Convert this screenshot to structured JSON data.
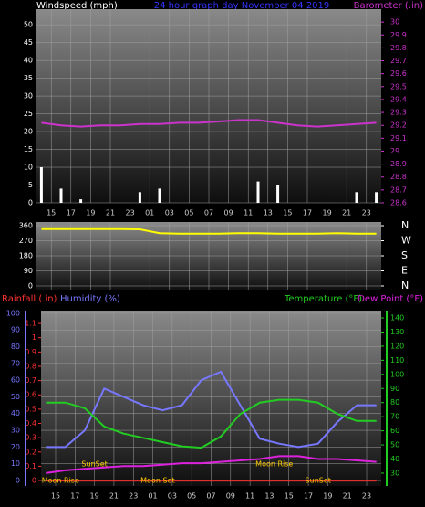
{
  "chart_data": [
    {
      "type": "bar",
      "title": "24 hour graph day   November 04 2019",
      "x": [
        14,
        16,
        18,
        20,
        22,
        24,
        26,
        28,
        30,
        32,
        34,
        36,
        38,
        40,
        42,
        44,
        46,
        48
      ],
      "xlim": [
        13.5,
        48.5
      ],
      "xticks": [
        {
          "value": 15,
          "label": "15"
        },
        {
          "value": 17,
          "label": "17"
        },
        {
          "value": 19,
          "label": "19"
        },
        {
          "value": 21,
          "label": "21"
        },
        {
          "value": 23,
          "label": "23"
        },
        {
          "value": 25,
          "label": "01"
        },
        {
          "value": 27,
          "label": "03"
        },
        {
          "value": 29,
          "label": "05"
        },
        {
          "value": 31,
          "label": "07"
        },
        {
          "value": 33,
          "label": "09"
        },
        {
          "value": 35,
          "label": "11"
        },
        {
          "value": 37,
          "label": "13"
        },
        {
          "value": 39,
          "label": "15"
        },
        {
          "value": 41,
          "label": "17"
        },
        {
          "value": 43,
          "label": "19"
        },
        {
          "value": 45,
          "label": "21"
        },
        {
          "value": 47,
          "label": "23"
        }
      ],
      "ylim": [
        0,
        54.4
      ],
      "yticks": [
        0,
        5,
        10,
        15,
        20,
        25,
        30,
        35,
        40,
        45,
        50
      ],
      "y2lim": [
        28.6,
        30.1
      ],
      "y2ticks": [
        28.6,
        28.7,
        28.8,
        28.9,
        29,
        29.1,
        29.2,
        29.3,
        29.4,
        29.5,
        29.6,
        29.7,
        29.8,
        29.9,
        30
      ],
      "grid": true,
      "series": [
        {
          "name": "Windspeed (mph)",
          "color": "#ffffff",
          "values": [
            10,
            4,
            1,
            0,
            0,
            3,
            4,
            0,
            0,
            0,
            0,
            6,
            5,
            0,
            0,
            0,
            3,
            3
          ]
        },
        {
          "name": "Barometer (.in)",
          "color": "#cc33cc",
          "axis": "y2",
          "values": [
            29.22,
            29.2,
            29.19,
            29.2,
            29.2,
            29.21,
            29.21,
            29.22,
            29.22,
            29.23,
            29.24,
            29.24,
            29.22,
            29.2,
            29.19,
            29.2,
            29.21,
            29.22
          ]
        }
      ]
    },
    {
      "type": "line",
      "x": [
        14,
        16,
        18,
        20,
        22,
        24,
        26,
        28,
        30,
        32,
        34,
        36,
        38,
        40,
        42,
        44,
        46,
        48
      ],
      "xlim": [
        13.5,
        48.5
      ],
      "ylim": [
        -27.3,
        381.8
      ],
      "yticks": [
        0,
        90,
        180,
        270,
        360
      ],
      "y2lim": [
        -27.3,
        381.8
      ],
      "y2ticks": [
        {
          "value": 360,
          "label": "N"
        },
        {
          "value": 270,
          "label": "W"
        },
        {
          "value": 180,
          "label": "S"
        },
        {
          "value": 90,
          "label": "E"
        },
        {
          "value": 0,
          "label": "N"
        }
      ],
      "grid": true,
      "series": [
        {
          "color": "#ffff00",
          "values": [
            340,
            340,
            340,
            340,
            340,
            338,
            315,
            312,
            312,
            312,
            315,
            315,
            312,
            312,
            312,
            315,
            312,
            312
          ]
        }
      ]
    },
    {
      "type": "line",
      "x": [
        14,
        16,
        18,
        20,
        22,
        24,
        26,
        28,
        30,
        32,
        34,
        36,
        38,
        40,
        42,
        44,
        46,
        48
      ],
      "xlim": [
        13.5,
        48.5
      ],
      "xticks": [
        {
          "value": 15,
          "label": "15"
        },
        {
          "value": 17,
          "label": "17"
        },
        {
          "value": 19,
          "label": "19"
        },
        {
          "value": 21,
          "label": "21"
        },
        {
          "value": 23,
          "label": "23"
        },
        {
          "value": 25,
          "label": "01"
        },
        {
          "value": 27,
          "label": "03"
        },
        {
          "value": 29,
          "label": "05"
        },
        {
          "value": 31,
          "label": "07"
        },
        {
          "value": 33,
          "label": "09"
        },
        {
          "value": 35,
          "label": "11"
        },
        {
          "value": 37,
          "label": "13"
        },
        {
          "value": 39,
          "label": "15"
        },
        {
          "value": 41,
          "label": "17"
        },
        {
          "value": 43,
          "label": "19"
        },
        {
          "value": 45,
          "label": "21"
        },
        {
          "value": 47,
          "label": "23"
        }
      ],
      "ylim": [
        -3.3,
        101.6
      ],
      "yticks": [
        0,
        10,
        20,
        30,
        40,
        50,
        60,
        70,
        80,
        90,
        100
      ],
      "y2lim": [
        20.9,
        145.2
      ],
      "y2ticks": [
        30,
        40,
        50,
        60,
        70,
        80,
        90,
        100,
        110,
        120,
        130,
        140
      ],
      "y3lim": [
        -0.038,
        1.19
      ],
      "y3ticks": [
        0,
        0.1,
        0.2,
        0.3,
        0.4,
        0.5,
        0.6,
        0.7,
        0.8,
        0.9,
        1,
        1.1
      ],
      "grid": true,
      "series": [
        {
          "name": "Rainfall (.in)",
          "color": "#ff3333",
          "axis": "y3",
          "values": [
            0,
            0,
            0,
            0,
            0,
            0,
            0,
            0,
            0,
            0,
            0,
            0,
            0,
            0,
            0,
            0,
            0,
            0
          ]
        },
        {
          "name": "Humidity (%)",
          "color": "#7777ff",
          "values": [
            20,
            20,
            30,
            55,
            50,
            45,
            42,
            45,
            60,
            65,
            45,
            25,
            22,
            20,
            22,
            35,
            45,
            45
          ]
        },
        {
          "name": "Temperature (°F)",
          "color": "#22cc22",
          "axis": "y2",
          "values": [
            80,
            80,
            76,
            63,
            58,
            55,
            52,
            49,
            48,
            56,
            72,
            80,
            82,
            82,
            80,
            72,
            67,
            67
          ]
        },
        {
          "name": "Dew Point (°F)",
          "color": "#dd22dd",
          "axis": "y2",
          "values": [
            30,
            32,
            33,
            34,
            35,
            35,
            36,
            37,
            37,
            38,
            39,
            40,
            42,
            42,
            40,
            40,
            39,
            38
          ]
        }
      ],
      "annotations": [
        {
          "text": "Moon Rise",
          "x": 15.5
        },
        {
          "text": "SunSet",
          "x": 19
        },
        {
          "text": "Moon Set",
          "x": 25.5
        },
        {
          "text": "Moon Rise",
          "x": 37.5
        },
        {
          "text": "SunSet",
          "x": 42
        }
      ]
    }
  ]
}
